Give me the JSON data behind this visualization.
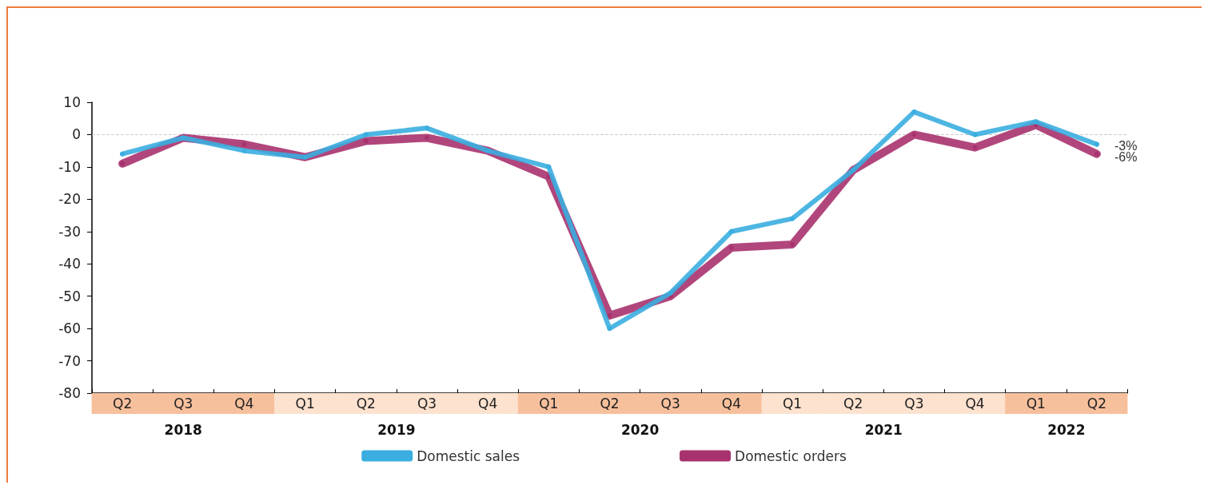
{
  "chart_data": {
    "type": "line",
    "categories": [
      "Q2",
      "Q3",
      "Q4",
      "Q1",
      "Q2",
      "Q3",
      "Q4",
      "Q1",
      "Q2",
      "Q3",
      "Q4",
      "Q1",
      "Q2",
      "Q3",
      "Q4",
      "Q1",
      "Q2"
    ],
    "series": [
      {
        "name": "Domestic sales",
        "color": "#3aaee0",
        "values": [
          -6,
          -1,
          -5,
          -7,
          0,
          2,
          -5,
          -10,
          -60,
          -49,
          -30,
          -26,
          -11,
          7,
          0,
          4,
          -3
        ],
        "value_labels": [
          null,
          null,
          null,
          null,
          null,
          null,
          null,
          null,
          null,
          null,
          null,
          null,
          null,
          null,
          null,
          null,
          "-3%"
        ]
      },
      {
        "name": "Domestic orders",
        "color": "#a8326e",
        "values": [
          -9,
          -1,
          -3,
          -7,
          -2,
          -1,
          -5,
          -13,
          -56,
          -50,
          -35,
          -34,
          -11,
          0,
          -4,
          3,
          -6
        ],
        "value_labels": [
          null,
          null,
          null,
          null,
          null,
          null,
          null,
          null,
          null,
          null,
          null,
          null,
          null,
          null,
          null,
          null,
          "-6%"
        ]
      }
    ],
    "annotations": [
      "2018",
      "2019",
      "2020",
      "2021",
      "2022"
    ],
    "ylim": [
      -80,
      10
    ],
    "yticks": [
      -80,
      -70,
      -60,
      -50,
      -40,
      -30,
      -20,
      -10,
      0,
      10
    ],
    "ref_lines": [
      {
        "axis": "y",
        "value": 0,
        "color": "#cccccc",
        "line_style": "dashed"
      }
    ],
    "grid": false,
    "legend": "bottom",
    "marker": "circle",
    "line_style": "solid"
  }
}
